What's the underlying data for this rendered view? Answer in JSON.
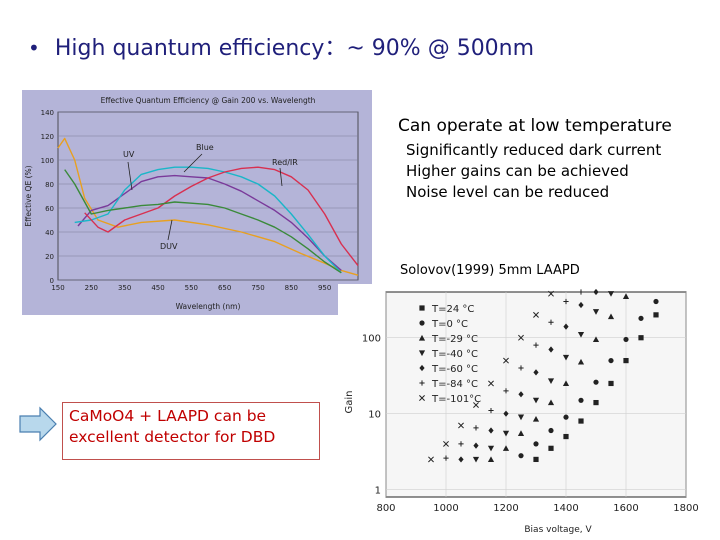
{
  "slide": {
    "headline": "High quantum efficiency：~ 90% @ 500nm",
    "bullet": "•",
    "right_heading": "Can operate at low temperature",
    "right_points": [
      "Significantly reduced dark current",
      "Higher gains can be achieved",
      "Noise level can be reduced"
    ],
    "callout_lines": [
      "CaMoO4 + LAAPD can be",
      "excellent detector for DBD"
    ],
    "accent_color": "#1f1f7a",
    "callout_color": "#c00000"
  },
  "chart_data": [
    {
      "type": "line",
      "title": "Effective Quantum Efficiency @ Gain 200 vs. Wavelength",
      "xlabel": "Wavelength (nm)",
      "ylabel": "Effective QE (%)",
      "xlim": [
        150,
        1050
      ],
      "ylim": [
        0,
        140
      ],
      "x_ticks": [
        150,
        250,
        350,
        450,
        550,
        650,
        750,
        850,
        950,
        1050
      ],
      "y_ticks": [
        0,
        20,
        40,
        60,
        80,
        100,
        120,
        140
      ],
      "annotations": [
        "UV",
        "Blue",
        "Red/IR",
        "DUV"
      ],
      "series": [
        {
          "name": "DUV",
          "color": "#e8a020",
          "x": [
            150,
            170,
            200,
            230,
            270,
            330,
            400,
            500,
            600,
            700,
            800,
            880,
            950,
            1000,
            1050
          ],
          "y": [
            110,
            118,
            100,
            68,
            50,
            44,
            48,
            50,
            46,
            40,
            32,
            22,
            14,
            8,
            4
          ]
        },
        {
          "name": "UV",
          "color": "#7a3a9a",
          "x": [
            210,
            250,
            300,
            350,
            400,
            450,
            500,
            550,
            600,
            650,
            700,
            750,
            800,
            850,
            900,
            950,
            1000
          ],
          "y": [
            45,
            58,
            62,
            72,
            82,
            86,
            87,
            86,
            85,
            80,
            74,
            66,
            58,
            48,
            35,
            20,
            8
          ]
        },
        {
          "name": "Blue",
          "color": "#1ab6c8",
          "x": [
            200,
            250,
            300,
            350,
            400,
            450,
            500,
            550,
            600,
            650,
            700,
            750,
            800,
            850,
            900,
            950,
            1000
          ],
          "y": [
            48,
            50,
            55,
            75,
            88,
            92,
            94,
            94,
            93,
            90,
            86,
            80,
            70,
            55,
            38,
            20,
            6
          ]
        },
        {
          "name": "Red/IR",
          "color": "#d83050",
          "x": [
            230,
            270,
            300,
            350,
            400,
            450,
            500,
            550,
            600,
            650,
            700,
            750,
            800,
            850,
            900,
            950,
            1000,
            1050
          ],
          "y": [
            56,
            44,
            40,
            50,
            55,
            60,
            70,
            78,
            85,
            90,
            93,
            94,
            92,
            86,
            75,
            55,
            30,
            12
          ]
        },
        {
          "name": "Green",
          "color": "#3a8a3a",
          "x": [
            170,
            200,
            250,
            300,
            350,
            400,
            450,
            500,
            550,
            600,
            650,
            700,
            750,
            800,
            850,
            900,
            950,
            1000
          ],
          "y": [
            92,
            80,
            55,
            58,
            60,
            62,
            63,
            65,
            64,
            63,
            60,
            55,
            50,
            44,
            36,
            26,
            15,
            6
          ]
        }
      ]
    },
    {
      "type": "scatter",
      "title": "Solovov(1999)  5mm LAAPD",
      "xlabel": "Bias voltage, V",
      "ylabel": "Gain",
      "y_scale": "log",
      "xlim": [
        800,
        1800
      ],
      "ylim": [
        0.8,
        400
      ],
      "x_ticks": [
        800,
        1000,
        1200,
        1400,
        1600,
        1800
      ],
      "y_ticks": [
        1,
        10,
        100
      ],
      "legend_position": "top-left",
      "series": [
        {
          "name": "T=24 °C",
          "marker": "square",
          "x": [
            1300,
            1350,
            1400,
            1450,
            1500,
            1550,
            1600,
            1650,
            1700
          ],
          "y": [
            2.5,
            3.5,
            5,
            8,
            14,
            25,
            50,
            100,
            200
          ]
        },
        {
          "name": "T=0  °C",
          "marker": "circle",
          "x": [
            1250,
            1300,
            1350,
            1400,
            1450,
            1500,
            1550,
            1600,
            1650,
            1700
          ],
          "y": [
            2.8,
            4,
            6,
            9,
            15,
            26,
            50,
            95,
            180,
            300
          ]
        },
        {
          "name": "T=-29 °C",
          "marker": "triangle-up",
          "x": [
            1150,
            1200,
            1250,
            1300,
            1350,
            1400,
            1450,
            1500,
            1550,
            1600
          ],
          "y": [
            2.5,
            3.5,
            5.5,
            8.5,
            14,
            25,
            48,
            95,
            190,
            350
          ]
        },
        {
          "name": "T=-40 °C",
          "marker": "triangle-down",
          "x": [
            1100,
            1150,
            1200,
            1250,
            1300,
            1350,
            1400,
            1450,
            1500,
            1550
          ],
          "y": [
            2.5,
            3.5,
            5.5,
            9,
            15,
            27,
            55,
            110,
            220,
            380
          ]
        },
        {
          "name": "T=-60 °C",
          "marker": "diamond",
          "x": [
            1050,
            1100,
            1150,
            1200,
            1250,
            1300,
            1350,
            1400,
            1450,
            1500
          ],
          "y": [
            2.5,
            3.8,
            6,
            10,
            18,
            35,
            70,
            140,
            270,
            400
          ]
        },
        {
          "name": "T=-84 °C",
          "marker": "plus",
          "x": [
            1000,
            1050,
            1100,
            1150,
            1200,
            1250,
            1300,
            1350,
            1400,
            1450
          ],
          "y": [
            2.6,
            4,
            6.5,
            11,
            20,
            40,
            80,
            160,
            300,
            400
          ]
        },
        {
          "name": "T=-101°C",
          "marker": "x",
          "x": [
            950,
            1000,
            1050,
            1100,
            1150,
            1200,
            1250,
            1300,
            1350
          ],
          "y": [
            2.5,
            4,
            7,
            13,
            25,
            50,
            100,
            200,
            380
          ]
        }
      ]
    }
  ]
}
